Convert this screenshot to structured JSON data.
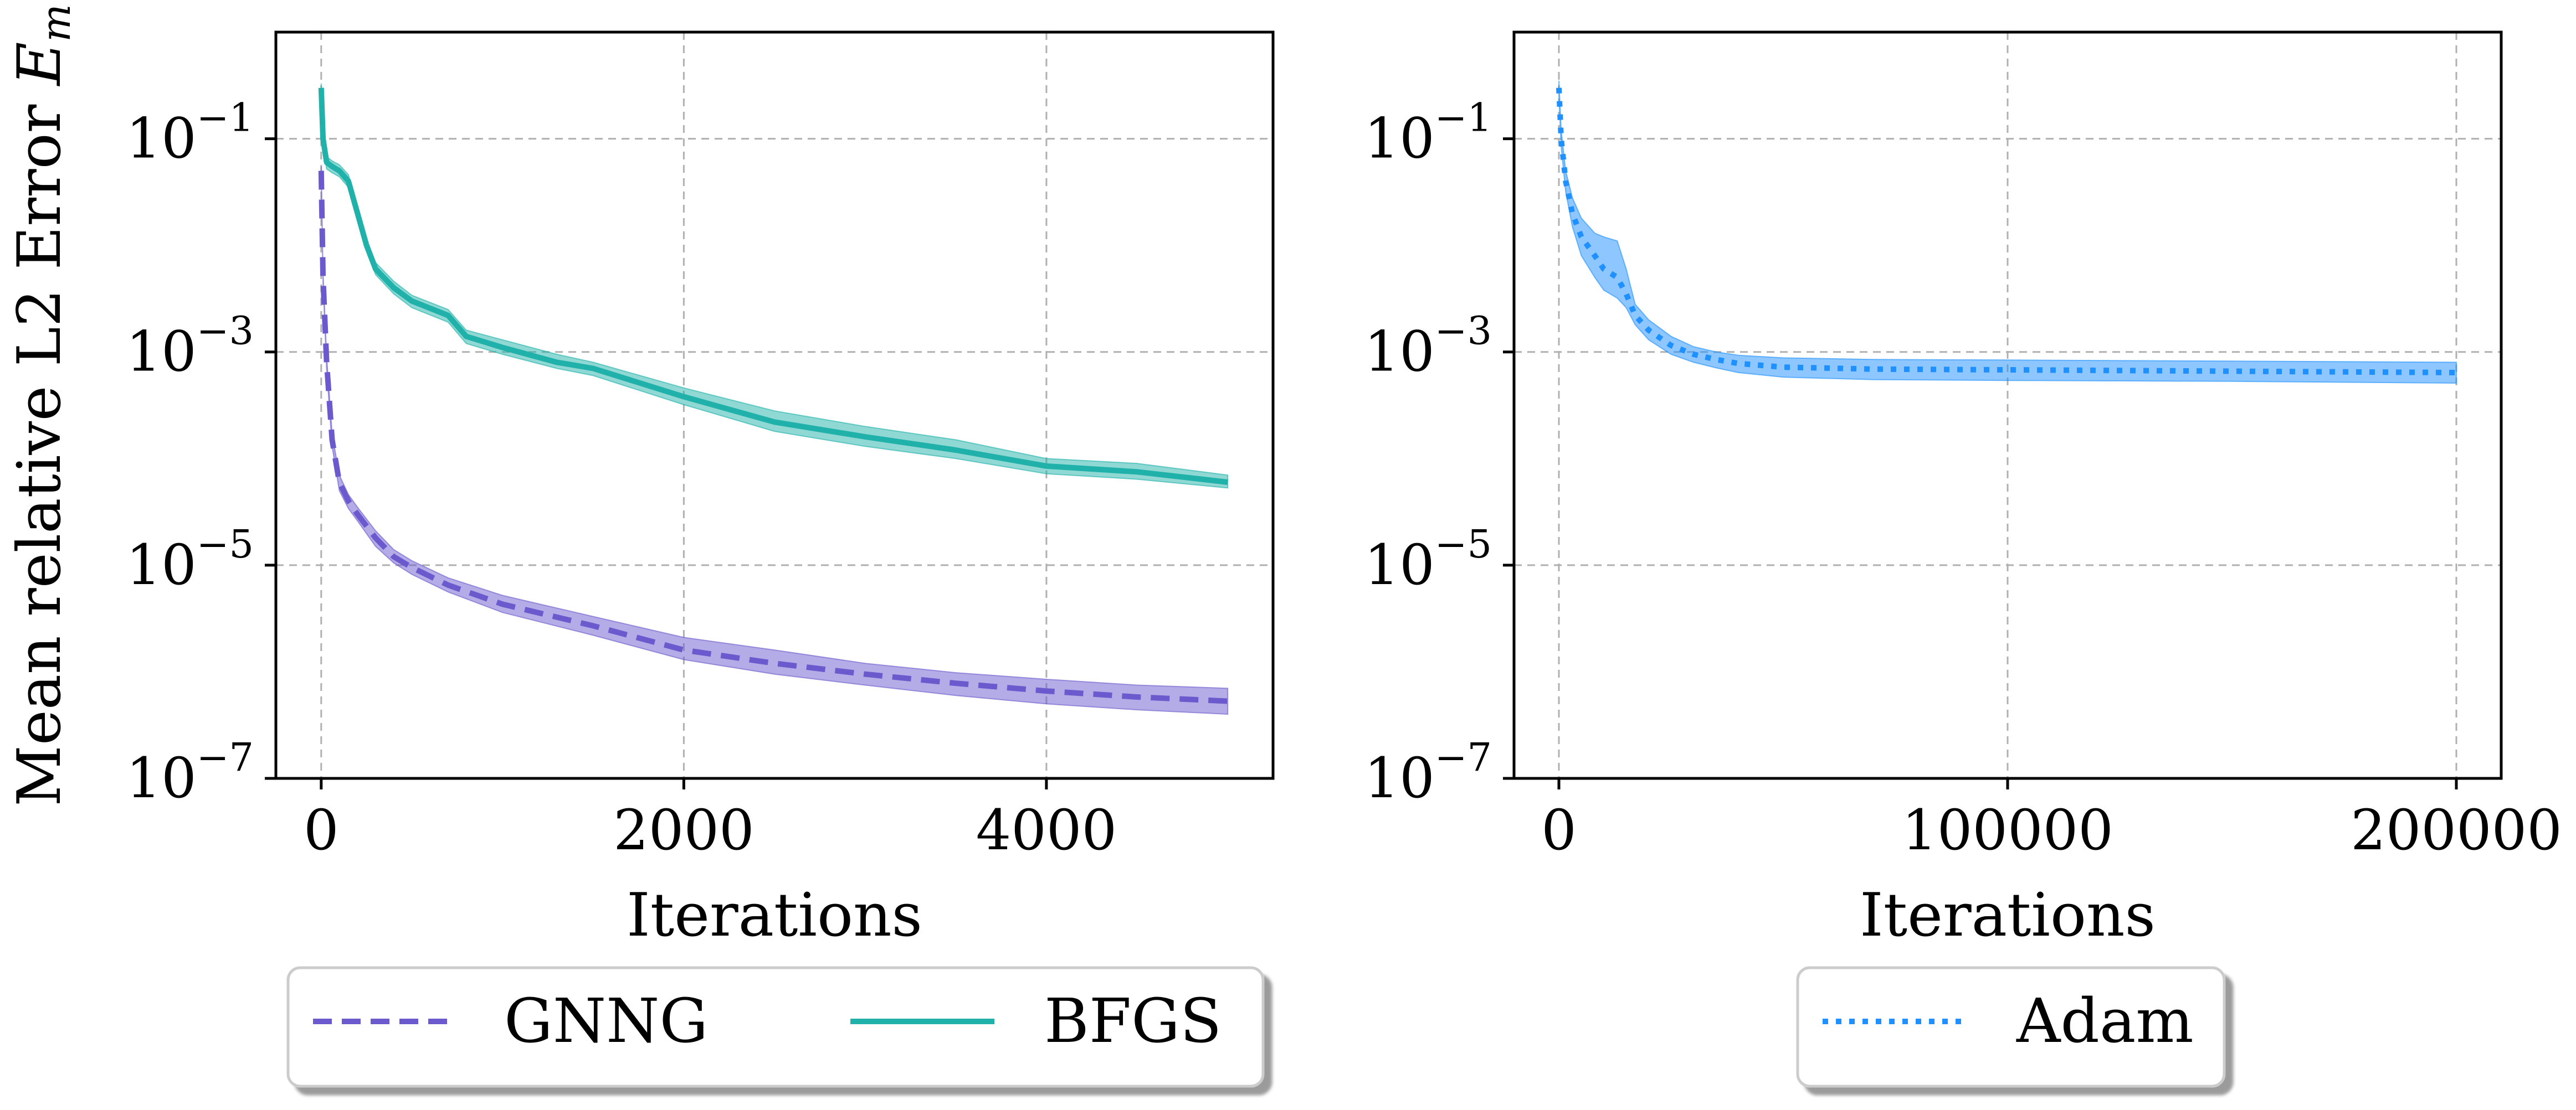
{
  "chart_data": [
    {
      "type": "line",
      "panel": "left",
      "title": "",
      "xlabel": "Iterations",
      "ylabel": "Mean relative L2 Error",
      "ylabel_symbol": "E",
      "ylabel_subscript": "m",
      "xlim": [
        -250,
        5250
      ],
      "xticks": [
        0,
        2000,
        4000
      ],
      "xtick_labels": [
        "0",
        "2000",
        "4000"
      ],
      "yscale": "log",
      "ylim_exp": [
        -7,
        0
      ],
      "yticks_exp": [
        -7,
        -5,
        -3,
        -1
      ],
      "ytick_base": "10",
      "ytick_exponents": [
        "−7",
        "−5",
        "−3",
        "−1"
      ],
      "grid": true,
      "legend": "bottom-outside",
      "series": [
        {
          "name": "GNNG",
          "style": "dashed",
          "color": "#6a5acd",
          "x": [
            0,
            10,
            30,
            60,
            100,
            150,
            200,
            300,
            400,
            500,
            700,
            1000,
            1500,
            2000,
            2500,
            3000,
            3500,
            4000,
            4500,
            5000
          ],
          "y": [
            0.05,
            0.005,
            0.0008,
            0.00015,
            6e-05,
            4e-05,
            3e-05,
            1.8e-05,
            1.2e-05,
            9.5e-06,
            6.5e-06,
            4.3e-06,
            2.7e-06,
            1.6e-06,
            1.2e-06,
            9.5e-07,
            7.8e-07,
            6.6e-07,
            5.8e-07,
            5.3e-07
          ],
          "lower": [
            0.045,
            0.0045,
            0.0007,
            0.00013,
            5e-05,
            3.4e-05,
            2.6e-05,
            1.5e-05,
            1.05e-05,
            8.2e-06,
            5.6e-06,
            3.6e-06,
            2.2e-06,
            1.3e-06,
            9.5e-07,
            7.5e-07,
            6e-07,
            5e-07,
            4.4e-07,
            4e-07
          ],
          "upper": [
            0.055,
            0.0055,
            0.0009,
            0.00017,
            7e-05,
            4.6e-05,
            3.5e-05,
            2.1e-05,
            1.4e-05,
            1.1e-05,
            7.6e-06,
            5.2e-06,
            3.3e-06,
            2.1e-06,
            1.6e-06,
            1.2e-06,
            9.8e-07,
            8.5e-07,
            7.5e-07,
            7e-07
          ]
        },
        {
          "name": "BFGS",
          "style": "solid",
          "color": "#20b2aa",
          "x": [
            0,
            10,
            30,
            60,
            100,
            150,
            200,
            250,
            300,
            400,
            500,
            700,
            800,
            1000,
            1300,
            1500,
            2000,
            2500,
            3000,
            3500,
            4000,
            4500,
            5000
          ],
          "y": [
            0.3,
            0.1,
            0.06,
            0.055,
            0.05,
            0.04,
            0.02,
            0.01,
            0.006,
            0.004,
            0.003,
            0.0022,
            0.0014,
            0.0011,
            0.0008,
            0.0007,
            0.00038,
            0.00022,
            0.00016,
            0.00012,
            8.5e-05,
            7.5e-05,
            6e-05
          ],
          "lower": [
            0.25,
            0.085,
            0.052,
            0.048,
            0.044,
            0.035,
            0.017,
            0.0088,
            0.0053,
            0.0035,
            0.0026,
            0.0019,
            0.0012,
            0.00095,
            0.0007,
            0.0006,
            0.00032,
            0.00018,
            0.00013,
            0.0001,
            7.2e-05,
            6.4e-05,
            5.3e-05
          ],
          "upper": [
            0.33,
            0.115,
            0.068,
            0.062,
            0.057,
            0.046,
            0.023,
            0.0115,
            0.0069,
            0.0046,
            0.0034,
            0.0025,
            0.0016,
            0.0013,
            0.00095,
            0.0008,
            0.00046,
            0.00028,
            0.0002,
            0.00015,
            0.0001,
            9e-05,
            7e-05
          ]
        }
      ]
    },
    {
      "type": "line",
      "panel": "right",
      "title": "",
      "xlabel": "Iterations",
      "ylabel": "",
      "xlim": [
        -10000,
        210000
      ],
      "xticks": [
        0,
        100000,
        200000
      ],
      "xtick_labels": [
        "0",
        "100000",
        "200000"
      ],
      "yscale": "log",
      "ylim_exp": [
        -7,
        0
      ],
      "yticks_exp": [
        -7,
        -5,
        -3,
        -1
      ],
      "ytick_base": "10",
      "ytick_exponents": [
        "−7",
        "−5",
        "−3",
        "−1"
      ],
      "grid": true,
      "legend": "bottom-outside",
      "series": [
        {
          "name": "Adam",
          "style": "dotted",
          "color": "#1e90ff",
          "x": [
            0,
            500,
            1500,
            3000,
            5000,
            8000,
            10000,
            13000,
            15000,
            17000,
            20000,
            25000,
            30000,
            35000,
            40000,
            50000,
            70000,
            100000,
            150000,
            200000
          ],
          "y": [
            0.3,
            0.1,
            0.04,
            0.02,
            0.012,
            0.008,
            0.006,
            0.005,
            0.0035,
            0.0022,
            0.0016,
            0.00115,
            0.00095,
            0.00085,
            0.00078,
            0.00072,
            0.00069,
            0.00068,
            0.00066,
            0.00064
          ],
          "lower": [
            0.25,
            0.085,
            0.032,
            0.015,
            0.008,
            0.005,
            0.0038,
            0.0032,
            0.0026,
            0.0018,
            0.0013,
            0.00095,
            0.0008,
            0.00071,
            0.00064,
            0.00058,
            0.00055,
            0.00054,
            0.00053,
            0.00051
          ],
          "upper": [
            0.35,
            0.12,
            0.05,
            0.028,
            0.018,
            0.013,
            0.012,
            0.011,
            0.006,
            0.0028,
            0.002,
            0.0014,
            0.00112,
            0.001,
            0.00093,
            0.00088,
            0.00085,
            0.00084,
            0.00082,
            0.0008
          ]
        }
      ]
    }
  ]
}
